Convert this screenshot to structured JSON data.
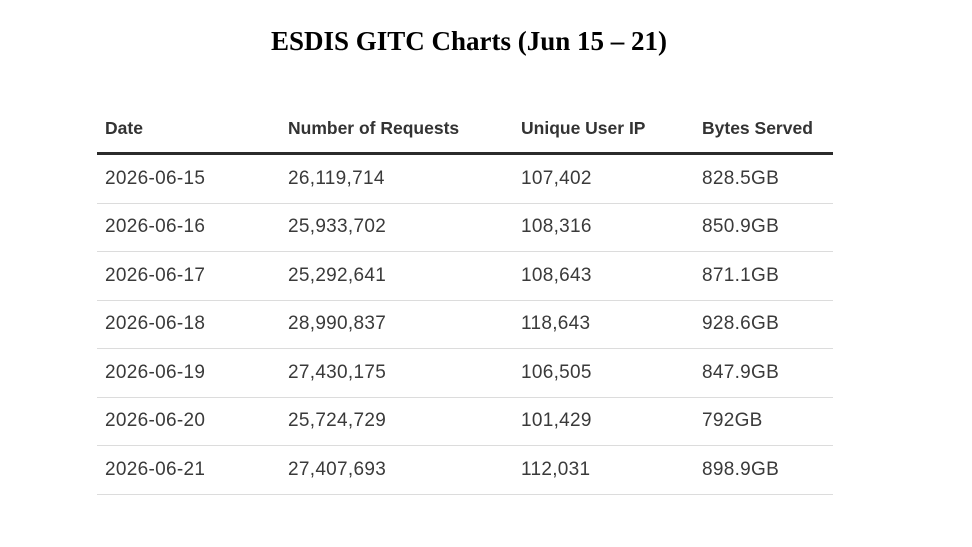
{
  "title": "ESDIS GITC Charts (Jun 15 – 21)",
  "table": {
    "headers": [
      "Date",
      "Number of Requests",
      "Unique User IP",
      "Bytes Served"
    ],
    "rows": [
      [
        "2026-06-15",
        "26,119,714",
        "107,402",
        "828.5GB"
      ],
      [
        "2026-06-16",
        "25,933,702",
        "108,316",
        "850.9GB"
      ],
      [
        "2026-06-17",
        "25,292,641",
        "108,643",
        "871.1GB"
      ],
      [
        "2026-06-18",
        "28,990,837",
        "118,643",
        "928.6GB"
      ],
      [
        "2026-06-19",
        "27,430,175",
        "106,505",
        "847.9GB"
      ],
      [
        "2026-06-20",
        "25,724,729",
        "101,429",
        "792GB"
      ],
      [
        "2026-06-21",
        "27,407,693",
        "112,031",
        "898.9GB"
      ]
    ]
  }
}
